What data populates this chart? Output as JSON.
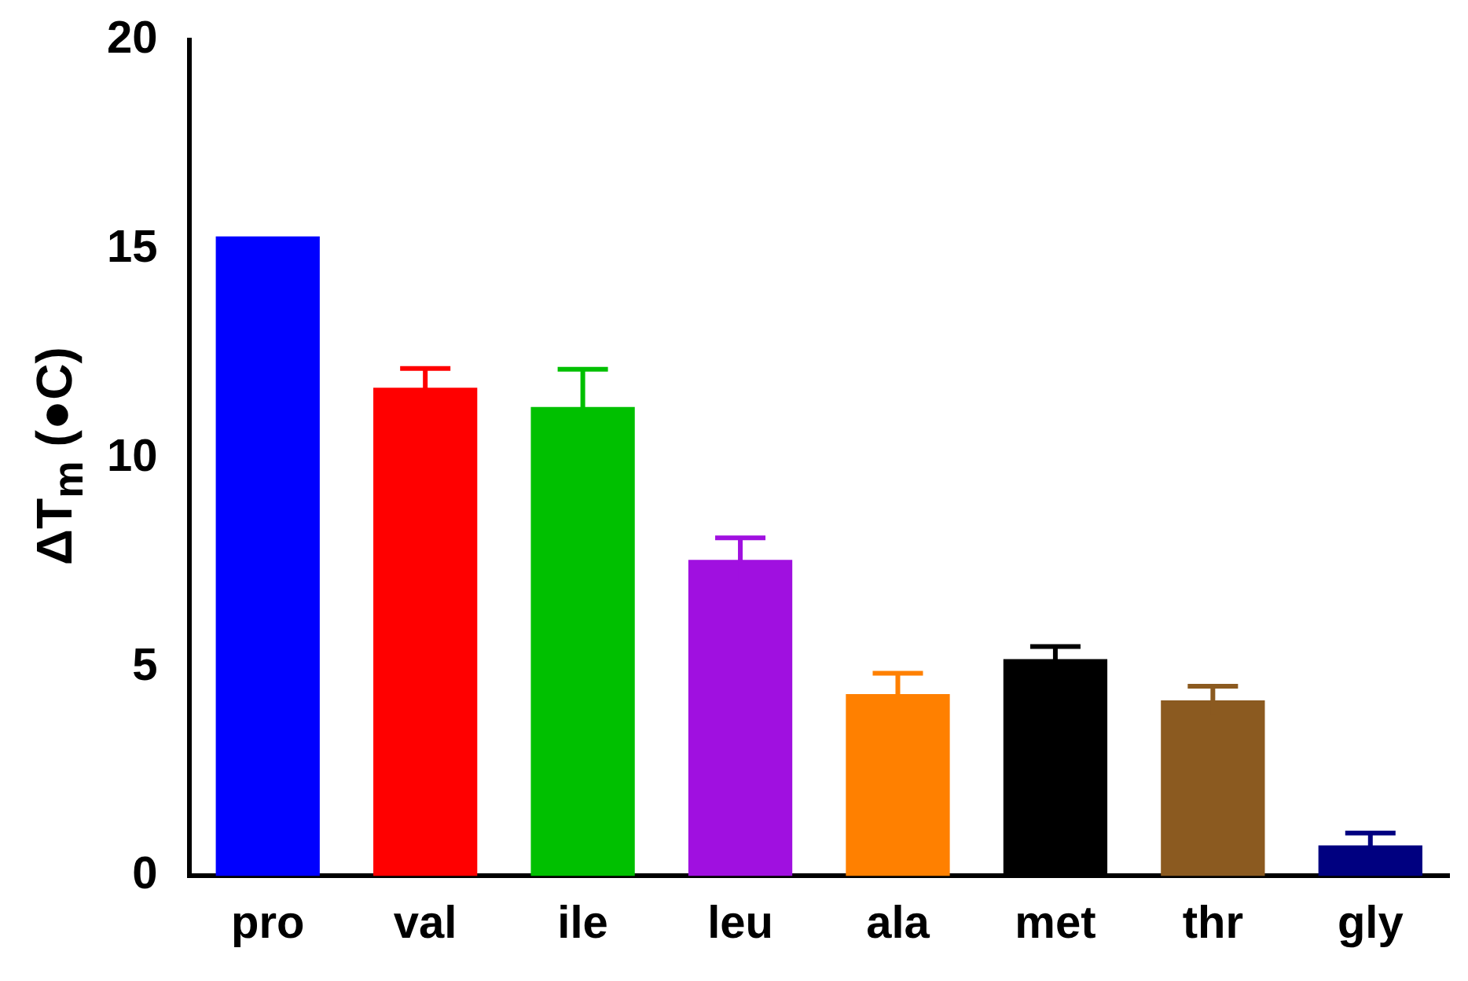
{
  "chart_data": {
    "type": "bar",
    "ylabel": "ΔT$_{m}$ (●C)",
    "categories": [
      "pro",
      "val",
      "ile",
      "leu",
      "ala",
      "met",
      "thr",
      "gly"
    ],
    "values": [
      15.3,
      11.68,
      11.22,
      7.56,
      4.35,
      5.19,
      4.2,
      0.73
    ],
    "errors": [
      null,
      0.46,
      0.9,
      0.53,
      0.5,
      0.3,
      0.34,
      0.3
    ],
    "colors": [
      "#0000ff",
      "#ff0000",
      "#00c000",
      "#a010e0",
      "#ff8000",
      "#000000",
      "#8b5a20",
      "#000080"
    ],
    "ylim": [
      0,
      20
    ],
    "yticks": [
      0,
      5,
      10,
      15,
      20
    ],
    "grid": false,
    "legend": false
  }
}
